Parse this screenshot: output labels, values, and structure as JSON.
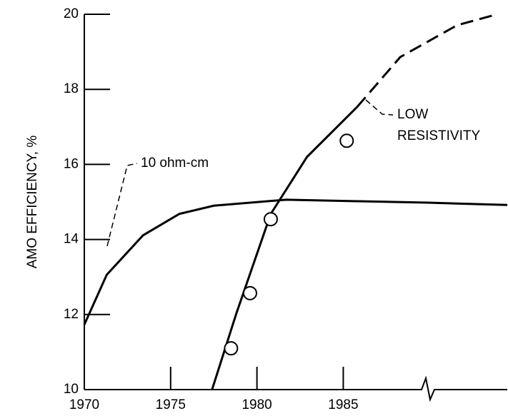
{
  "chart_data": {
    "type": "line",
    "ylabel": "AMO EFFICIENCY, %",
    "xlim": [
      1970,
      1994.5
    ],
    "xticks": [
      1970,
      1975,
      1980,
      1985
    ],
    "ylim": [
      10,
      20
    ],
    "yticks": [
      10,
      12,
      14,
      16,
      18,
      20
    ],
    "color": "#000000",
    "series": [
      {
        "style": "solid",
        "x": [
          1970,
          1971.3,
          1973.4,
          1975.5,
          1977.5,
          1981.7,
          1985.8,
          1989.9,
          1994.5
        ],
        "values": [
          11.73,
          13.06,
          14.11,
          14.68,
          14.9,
          15.06,
          15.02,
          14.98,
          14.92
        ]
      },
      {
        "style": "solid",
        "x": [
          1977.4,
          1978.8,
          1980.8,
          1982.9,
          1985.8
        ],
        "values": [
          10,
          12.02,
          14.68,
          16.2,
          17.53
        ]
      },
      {
        "style": "dashed",
        "x": [
          1985.8,
          1988.3,
          1991.6,
          1993.6
        ],
        "values": [
          17.53,
          18.86,
          19.71,
          19.96
        ]
      },
      {
        "style": "markers",
        "x": [
          1978.5,
          1979.6,
          1980.8,
          1985.2
        ],
        "values": [
          11.1,
          12.57,
          14.54,
          16.63
        ]
      }
    ],
    "annotations": [
      "10 ohm-cm",
      "LOW",
      "RESISTIVITY"
    ]
  }
}
